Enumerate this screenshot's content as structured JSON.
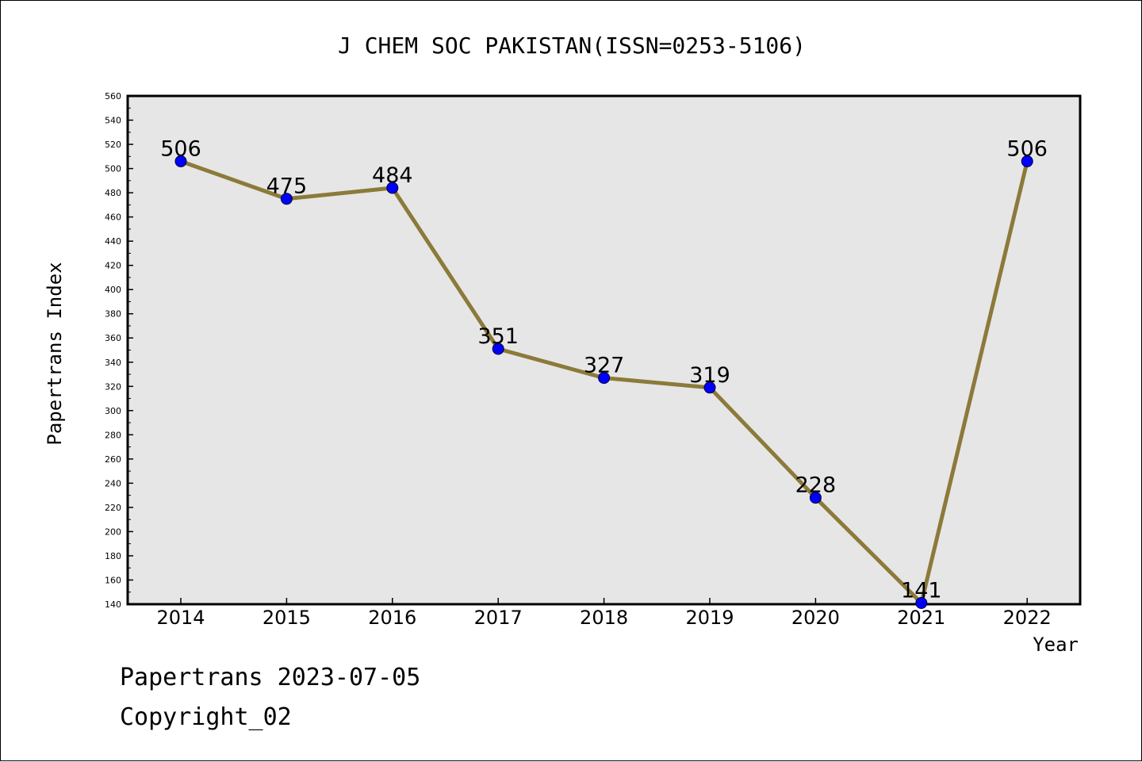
{
  "chart_data": {
    "type": "line",
    "title": "J CHEM SOC PAKISTAN(ISSN=0253-5106)",
    "xlabel": "Year",
    "ylabel": "Papertrans Index",
    "x": [
      "2014",
      "2015",
      "2016",
      "2017",
      "2018",
      "2019",
      "2020",
      "2021",
      "2022"
    ],
    "series": [
      {
        "values": [
          506,
          475,
          484,
          351,
          327,
          319,
          228,
          141,
          506
        ]
      }
    ],
    "data_labels": [
      "506",
      "475",
      "484",
      "351",
      "327",
      "319",
      "228",
      "141",
      "506"
    ],
    "ylim": [
      140,
      560
    ],
    "yticks": [
      "140",
      "160",
      "180",
      "200",
      "220",
      "240",
      "260",
      "280",
      "300",
      "320",
      "340",
      "360",
      "380",
      "400",
      "420",
      "440",
      "460",
      "480",
      "500",
      "520",
      "540",
      "560"
    ],
    "grid": false,
    "legend": "none",
    "line_color": "#8c7a3a",
    "marker_color": "#0000ff",
    "plot_background": "#e6e6e6"
  },
  "footer": {
    "line1": "Papertrans 2023-07-05",
    "line2": "Copyright_02"
  }
}
